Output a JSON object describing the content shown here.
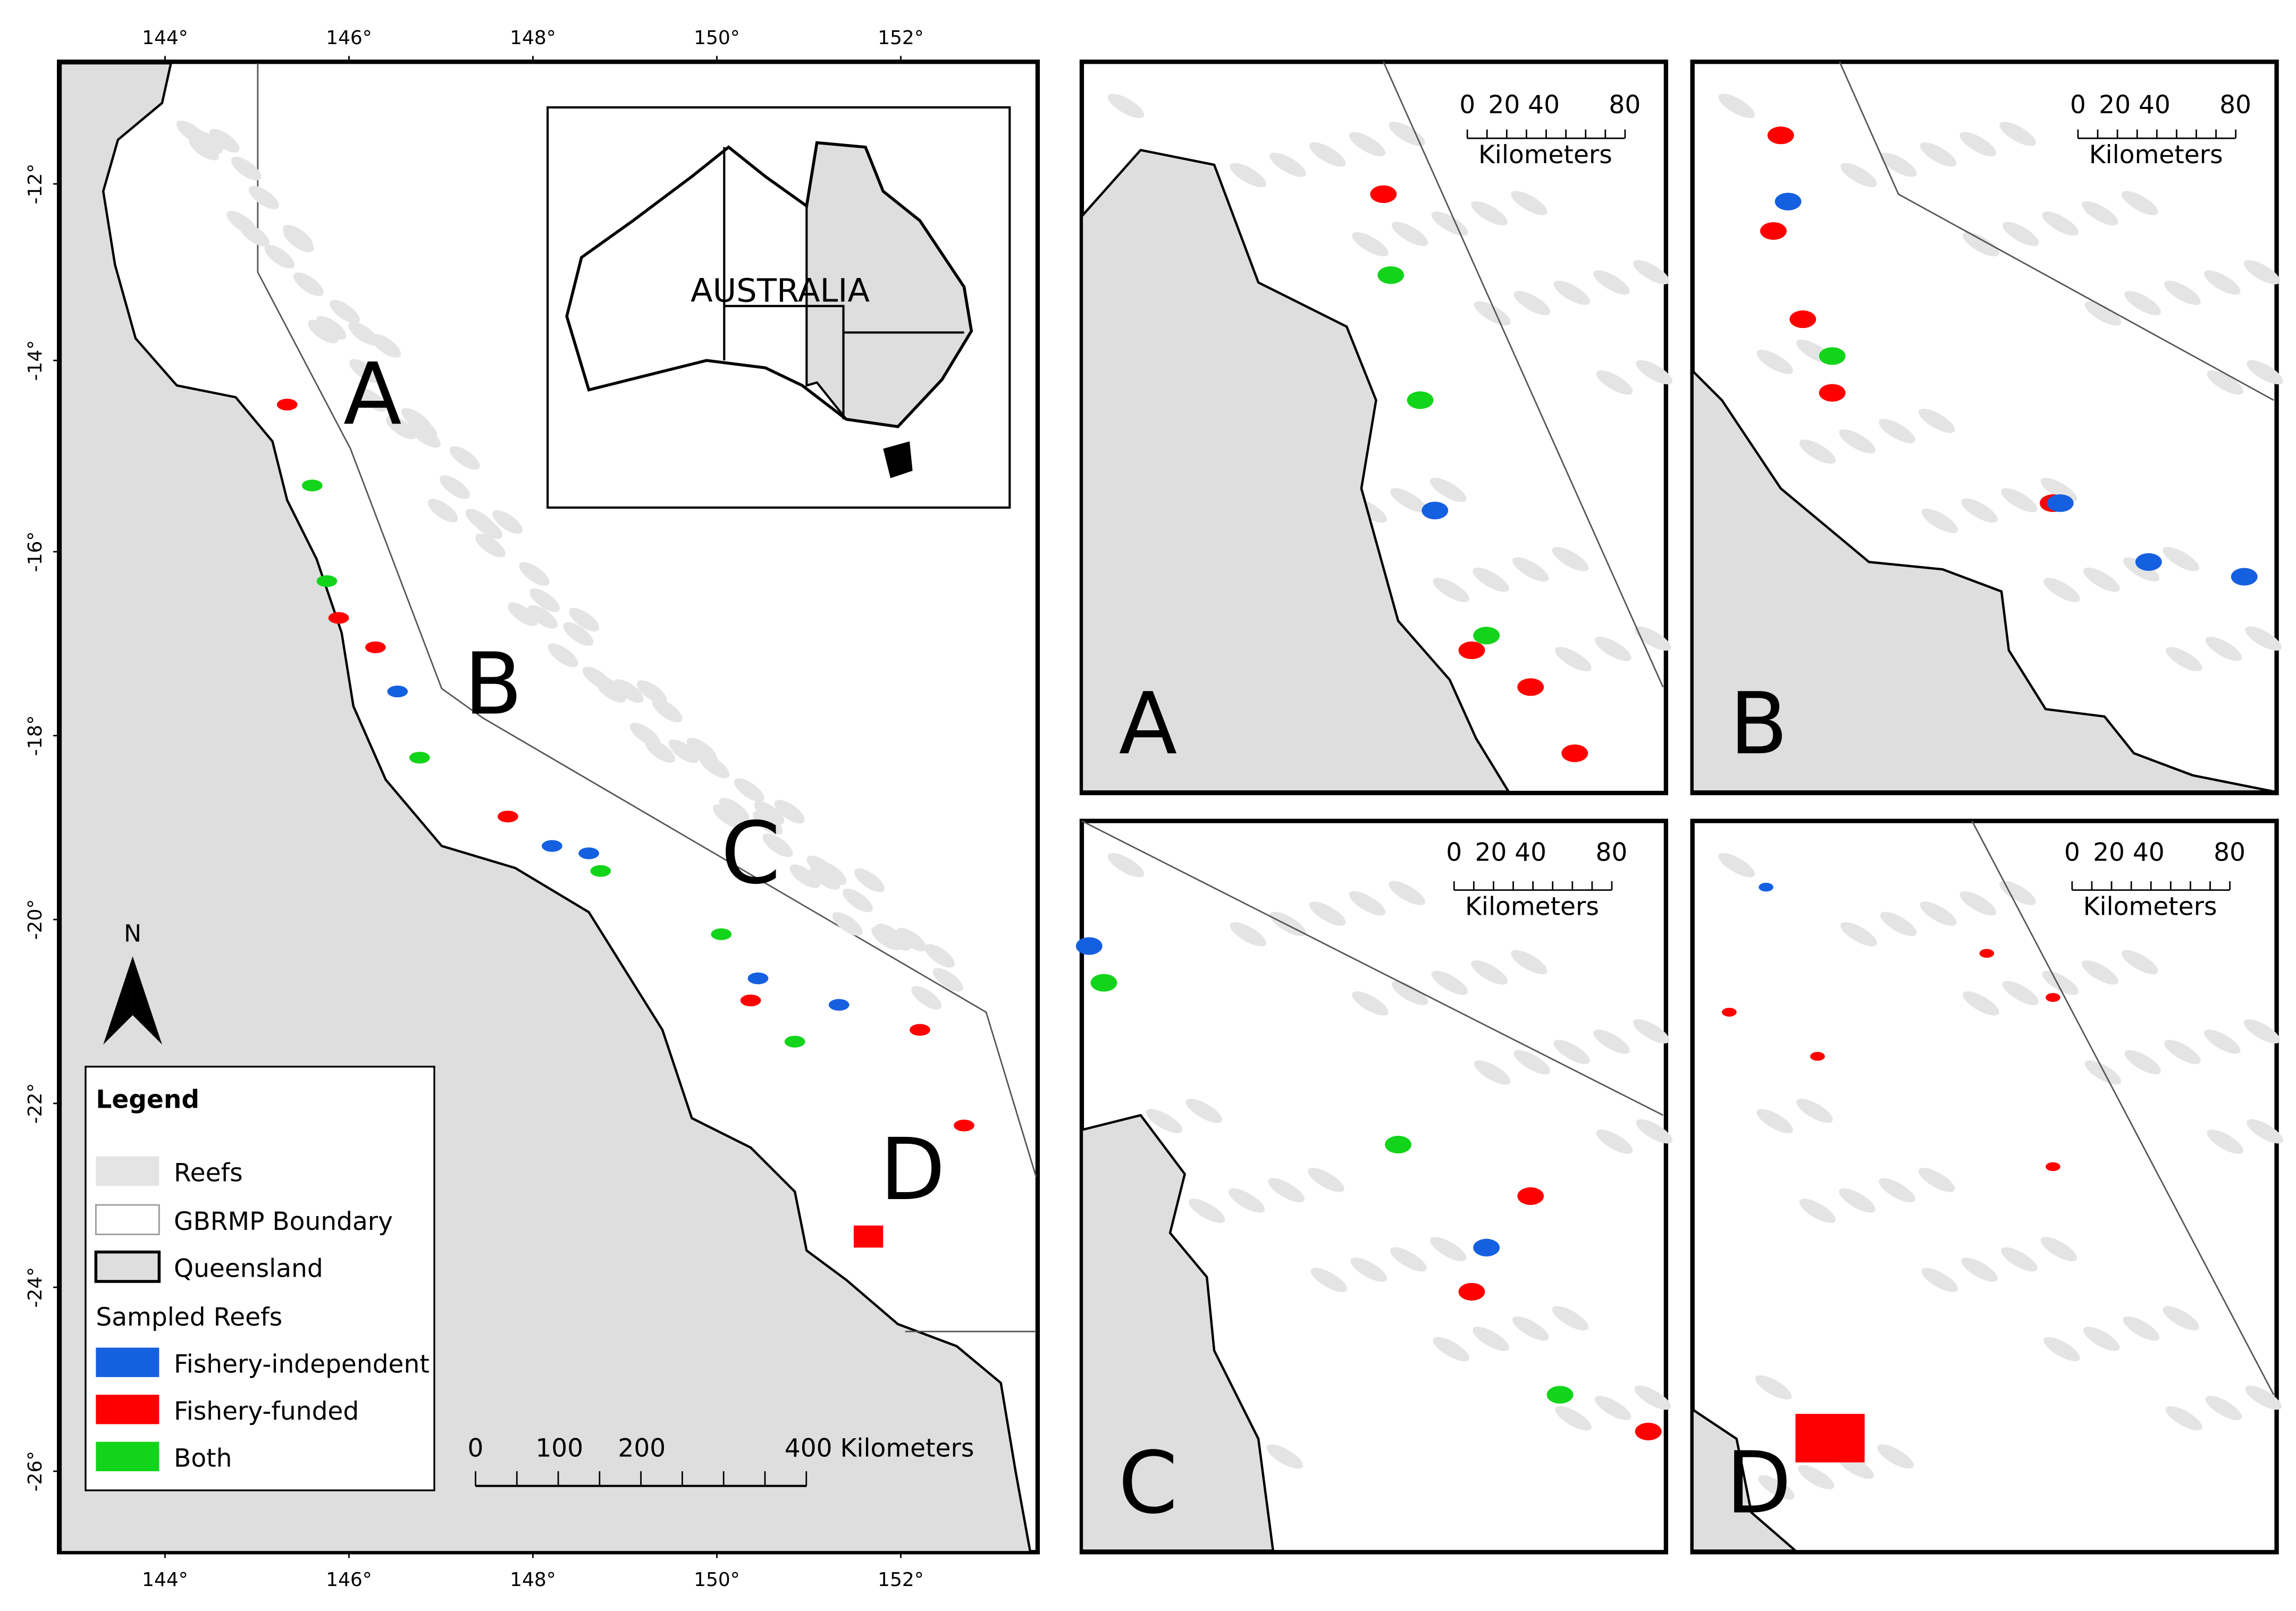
{
  "main_map": {
    "lon_labels": [
      "144°",
      "146°",
      "148°",
      "150°",
      "152°"
    ],
    "lat_labels": [
      "-12°",
      "-14°",
      "-16°",
      "-18°",
      "-20°",
      "-22°",
      "-24°",
      "-26°"
    ],
    "region_labels": [
      "A",
      "B",
      "C",
      "D"
    ],
    "inset_label": "AUSTRALIA",
    "north": "N",
    "scale_labels": [
      "0",
      "100",
      "200",
      "400 Kilometers"
    ]
  },
  "legend": {
    "title": "Legend",
    "items": [
      "Reefs",
      "GBRMP Boundary",
      "Queensland"
    ],
    "group": "Sampled Reefs",
    "sampled": [
      "Fishery-independent",
      "Fishery-funded",
      "Both"
    ]
  },
  "panels": [
    {
      "label": "A",
      "scale_labels": [
        "0",
        "20",
        "40",
        "80"
      ],
      "unit": "Kilometers"
    },
    {
      "label": "B",
      "scale_labels": [
        "0",
        "20",
        "40",
        "80"
      ],
      "unit": "Kilometers"
    },
    {
      "label": "C",
      "scale_labels": [
        "0",
        "20",
        "40",
        "80"
      ],
      "unit": "Kilometers"
    },
    {
      "label": "D",
      "scale_labels": [
        "0",
        "20",
        "40",
        "80"
      ],
      "unit": "Kilometers"
    }
  ]
}
